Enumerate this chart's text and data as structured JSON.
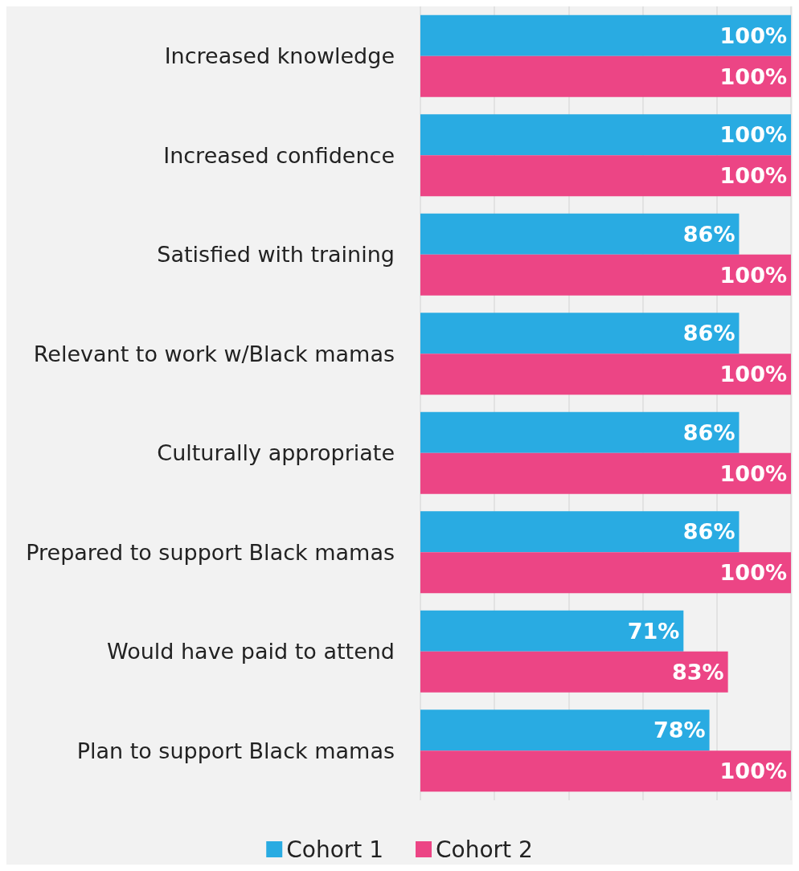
{
  "chart_data": {
    "type": "bar",
    "orientation": "horizontal",
    "categories": [
      "Increased knowledge",
      "Increased confidence",
      "Satisfied with training",
      "Relevant to work w/Black mamas",
      "Culturally appropriate",
      "Prepared to support Black mamas",
      "Would have paid to attend",
      "Plan to support Black mamas"
    ],
    "series": [
      {
        "name": "Cohort 1",
        "color": "#29abe2",
        "values": [
          100,
          100,
          86,
          86,
          86,
          86,
          71,
          78
        ],
        "value_labels": [
          "100%",
          "100%",
          "86%",
          "86%",
          "86%",
          "86%",
          "71%",
          "78%"
        ]
      },
      {
        "name": "Cohort 2",
        "color": "#ec4585",
        "values": [
          100,
          100,
          100,
          100,
          100,
          100,
          83,
          100
        ],
        "value_labels": [
          "100%",
          "100%",
          "100%",
          "100%",
          "100%",
          "100%",
          "83%",
          "100%"
        ]
      }
    ],
    "xlim": [
      0,
      100
    ],
    "xticks": [
      {
        "value": 0,
        "label": null
      },
      {
        "value": 20,
        "label": null
      },
      {
        "value": 40,
        "label": null
      },
      {
        "value": 60,
        "label": null
      },
      {
        "value": 80,
        "label": null
      },
      {
        "value": 100,
        "label": null
      }
    ],
    "grid": "x",
    "legend": "bottom",
    "tick_labels": "y"
  }
}
